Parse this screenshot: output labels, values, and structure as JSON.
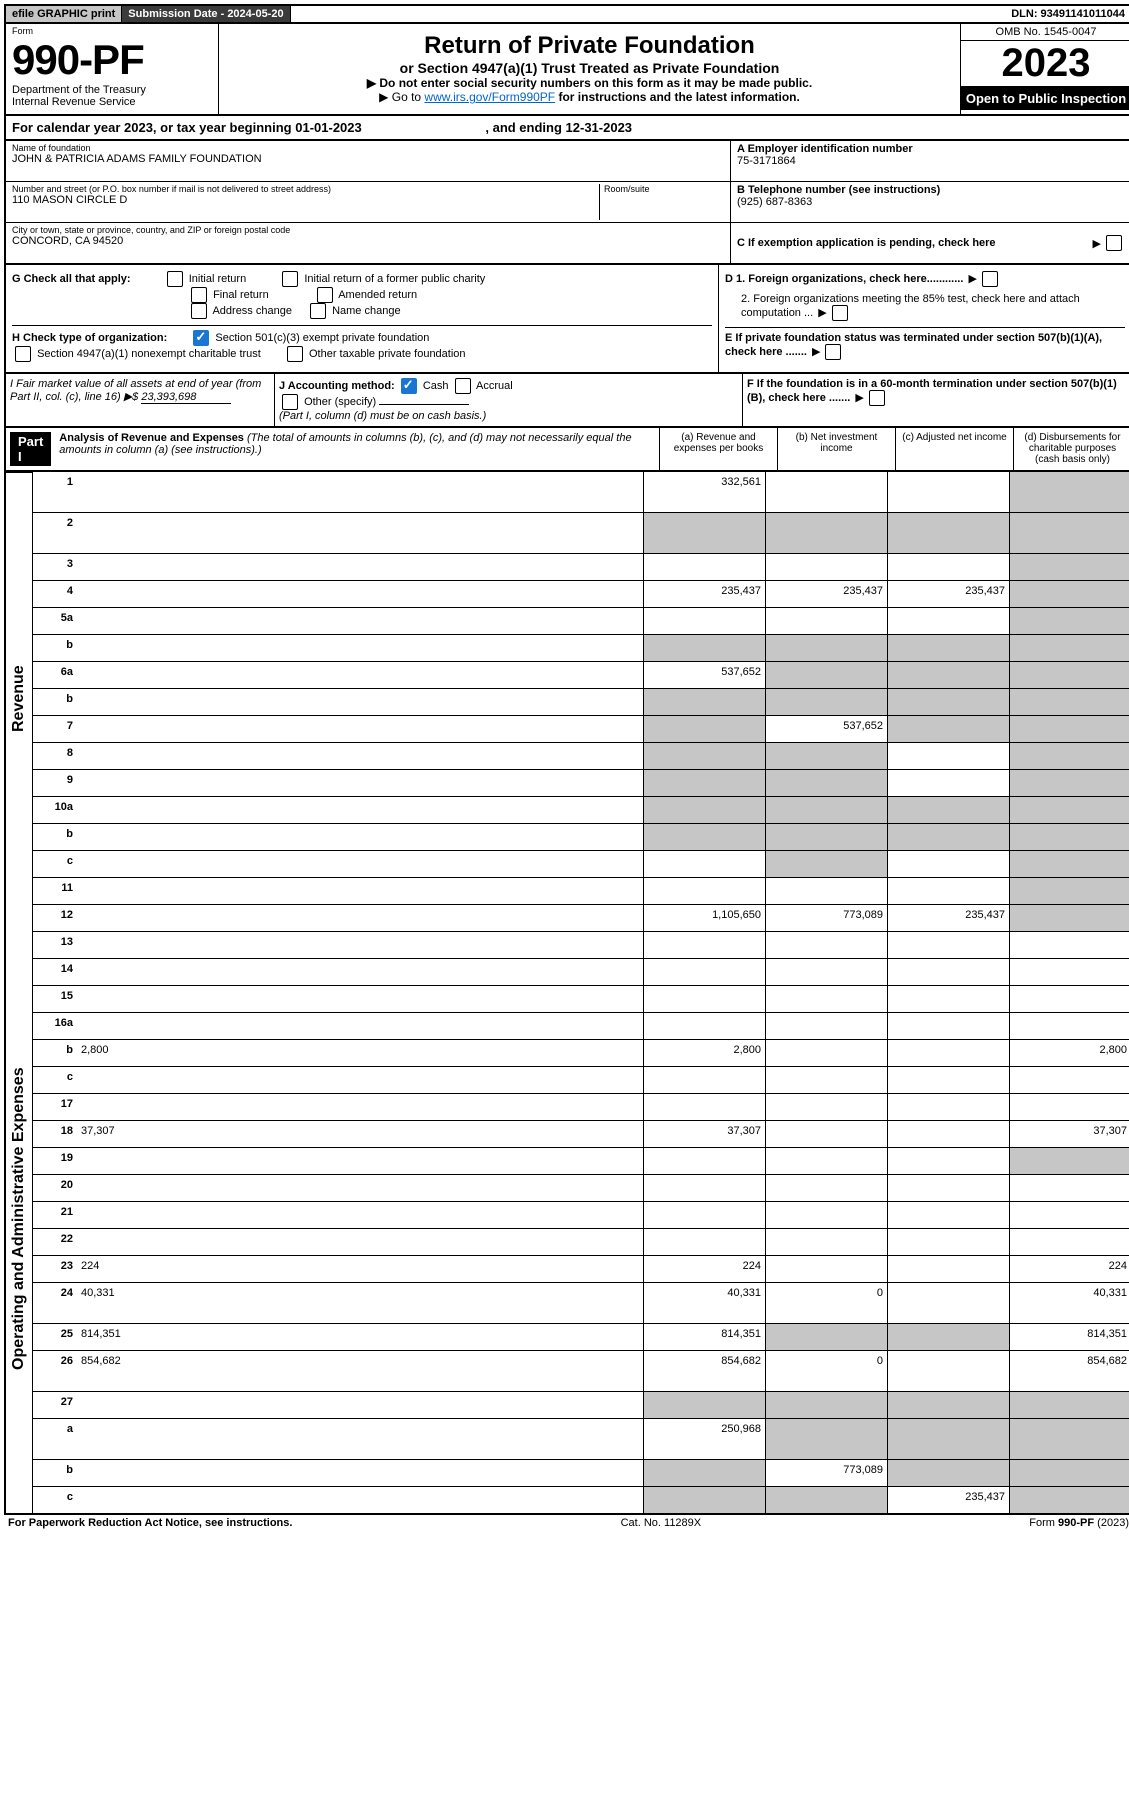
{
  "topbar": {
    "efile": "efile GRAPHIC print",
    "submission_label": "Submission Date - 2024-05-20",
    "dln": "DLN: 93491141011044"
  },
  "header": {
    "form_label": "Form",
    "form_number": "990-PF",
    "dept": "Department of the Treasury",
    "irs": "Internal Revenue Service",
    "title": "Return of Private Foundation",
    "subtitle": "or Section 4947(a)(1) Trust Treated as Private Foundation",
    "note1": "▶ Do not enter social security numbers on this form as it may be made public.",
    "note2_pre": "▶ Go to ",
    "note2_link": "www.irs.gov/Form990PF",
    "note2_post": " for instructions and the latest information.",
    "omb": "OMB No. 1545-0047",
    "year": "2023",
    "open": "Open to Public Inspection"
  },
  "calendar": {
    "text_pre": "For calendar year 2023, or tax year beginning ",
    "begin": "01-01-2023",
    "mid": " , and ending ",
    "end": "12-31-2023"
  },
  "info": {
    "name_label": "Name of foundation",
    "name": "JOHN & PATRICIA ADAMS FAMILY FOUNDATION",
    "addr_label": "Number and street (or P.O. box number if mail is not delivered to street address)",
    "addr": "110 MASON CIRCLE D",
    "room_label": "Room/suite",
    "city_label": "City or town, state or province, country, and ZIP or foreign postal code",
    "city": "CONCORD, CA  94520",
    "a_label": "A Employer identification number",
    "a_val": "75-3171864",
    "b_label": "B Telephone number (see instructions)",
    "b_val": "(925) 687-8363",
    "c_label": "C If exemption application is pending, check here"
  },
  "checks": {
    "g_label": "G Check all that apply:",
    "g_initial": "Initial return",
    "g_initial_former": "Initial return of a former public charity",
    "g_final": "Final return",
    "g_amended": "Amended return",
    "g_addr": "Address change",
    "g_name": "Name change",
    "h_label": "H Check type of organization:",
    "h_501c3": "Section 501(c)(3) exempt private foundation",
    "h_4947": "Section 4947(a)(1) nonexempt charitable trust",
    "h_other": "Other taxable private foundation",
    "d1": "D 1. Foreign organizations, check here............",
    "d2": "2. Foreign organizations meeting the 85% test, check here and attach computation ...",
    "e": "E  If private foundation status was terminated under section 507(b)(1)(A), check here .......",
    "f": "F  If the foundation is in a 60-month termination under section 507(b)(1)(B), check here ......."
  },
  "fmv": {
    "i_label": "I Fair market value of all assets at end of year (from Part II, col. (c), line 16)",
    "i_arrow": "▶$",
    "i_val": "23,393,698",
    "j_label": "J Accounting method:",
    "j_cash": "Cash",
    "j_accrual": "Accrual",
    "j_other": "Other (specify)",
    "j_note": "(Part I, column (d) must be on cash basis.)"
  },
  "part1": {
    "label": "Part I",
    "title": "Analysis of Revenue and Expenses",
    "title_note": "(The total of amounts in columns (b), (c), and (d) may not necessarily equal the amounts in column (a) (see instructions).)",
    "col_a": "(a) Revenue and expenses per books",
    "col_b": "(b) Net investment income",
    "col_c": "(c) Adjusted net income",
    "col_d": "(d) Disbursements for charitable purposes (cash basis only)"
  },
  "side": {
    "revenue": "Revenue",
    "opex": "Operating and Administrative Expenses"
  },
  "rows": [
    {
      "n": "1",
      "d": "",
      "a": "332,561",
      "b": "",
      "c": "",
      "tall": true,
      "bg": false,
      "cg": false,
      "dg": true
    },
    {
      "n": "2",
      "d": "",
      "a": "",
      "b": "",
      "c": "",
      "tall": true,
      "ag": true,
      "bg": true,
      "cg": true,
      "dg": true
    },
    {
      "n": "3",
      "d": "",
      "a": "",
      "b": "",
      "c": "",
      "dg": true
    },
    {
      "n": "4",
      "d": "",
      "a": "235,437",
      "b": "235,437",
      "c": "235,437",
      "dg": true
    },
    {
      "n": "5a",
      "d": "",
      "a": "",
      "b": "",
      "c": "",
      "dg": true
    },
    {
      "n": "b",
      "d": "",
      "a": "",
      "b": "",
      "c": "",
      "ag": true,
      "bg": true,
      "cg": true,
      "dg": true
    },
    {
      "n": "6a",
      "d": "",
      "a": "537,652",
      "b": "",
      "c": "",
      "bg": true,
      "cg": true,
      "dg": true
    },
    {
      "n": "b",
      "d": "",
      "a": "",
      "b": "",
      "c": "",
      "ag": true,
      "bg": true,
      "cg": true,
      "dg": true
    },
    {
      "n": "7",
      "d": "",
      "a": "",
      "b": "537,652",
      "c": "",
      "ag": true,
      "cg": true,
      "dg": true
    },
    {
      "n": "8",
      "d": "",
      "a": "",
      "b": "",
      "c": "",
      "ag": true,
      "bg": true,
      "dg": true
    },
    {
      "n": "9",
      "d": "",
      "a": "",
      "b": "",
      "c": "",
      "ag": true,
      "bg": true,
      "dg": true
    },
    {
      "n": "10a",
      "d": "",
      "a": "",
      "b": "",
      "c": "",
      "ag": true,
      "bg": true,
      "cg": true,
      "dg": true
    },
    {
      "n": "b",
      "d": "",
      "a": "",
      "b": "",
      "c": "",
      "ag": true,
      "bg": true,
      "cg": true,
      "dg": true
    },
    {
      "n": "c",
      "d": "",
      "a": "",
      "b": "",
      "c": "",
      "bg": true,
      "dg": true
    },
    {
      "n": "11",
      "d": "",
      "a": "",
      "b": "",
      "c": "",
      "dg": true
    },
    {
      "n": "12",
      "d": "",
      "a": "1,105,650",
      "b": "773,089",
      "c": "235,437",
      "dg": true
    },
    {
      "n": "13",
      "d": "",
      "a": "",
      "b": "",
      "c": ""
    },
    {
      "n": "14",
      "d": "",
      "a": "",
      "b": "",
      "c": ""
    },
    {
      "n": "15",
      "d": "",
      "a": "",
      "b": "",
      "c": ""
    },
    {
      "n": "16a",
      "d": "",
      "a": "",
      "b": "",
      "c": ""
    },
    {
      "n": "b",
      "d": "2,800",
      "a": "2,800",
      "b": "",
      "c": ""
    },
    {
      "n": "c",
      "d": "",
      "a": "",
      "b": "",
      "c": ""
    },
    {
      "n": "17",
      "d": "",
      "a": "",
      "b": "",
      "c": ""
    },
    {
      "n": "18",
      "d": "37,307",
      "a": "37,307",
      "b": "",
      "c": ""
    },
    {
      "n": "19",
      "d": "",
      "a": "",
      "b": "",
      "c": "",
      "dg": true
    },
    {
      "n": "20",
      "d": "",
      "a": "",
      "b": "",
      "c": ""
    },
    {
      "n": "21",
      "d": "",
      "a": "",
      "b": "",
      "c": ""
    },
    {
      "n": "22",
      "d": "",
      "a": "",
      "b": "",
      "c": ""
    },
    {
      "n": "23",
      "d": "224",
      "a": "224",
      "b": "",
      "c": ""
    },
    {
      "n": "24",
      "d": "40,331",
      "a": "40,331",
      "b": "0",
      "c": "",
      "tall": true
    },
    {
      "n": "25",
      "d": "814,351",
      "a": "814,351",
      "b": "",
      "c": "",
      "bg": true,
      "cg": true
    },
    {
      "n": "26",
      "d": "854,682",
      "a": "854,682",
      "b": "0",
      "c": "",
      "tall": true
    },
    {
      "n": "27",
      "d": "",
      "a": "",
      "b": "",
      "c": "",
      "ag": true,
      "bg": true,
      "cg": true,
      "dg": true
    },
    {
      "n": "a",
      "d": "",
      "a": "250,968",
      "b": "",
      "c": "",
      "tall": true,
      "bg": true,
      "cg": true,
      "dg": true
    },
    {
      "n": "b",
      "d": "",
      "a": "",
      "b": "773,089",
      "c": "",
      "ag": true,
      "cg": true,
      "dg": true
    },
    {
      "n": "c",
      "d": "",
      "a": "",
      "b": "",
      "c": "235,437",
      "ag": true,
      "bg": true,
      "dg": true
    }
  ],
  "footer": {
    "left": "For Paperwork Reduction Act Notice, see instructions.",
    "mid": "Cat. No. 11289X",
    "right": "Form 990-PF (2023)"
  }
}
